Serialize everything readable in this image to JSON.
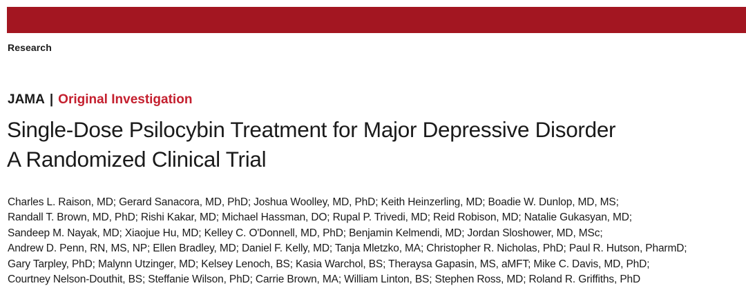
{
  "header": {
    "section": "Research"
  },
  "article": {
    "journal": "JAMA",
    "separator": "|",
    "type": "Original Investigation",
    "title": "Single-Dose Psilocybin Treatment for Major Depressive Disorder",
    "subtitle": "A Randomized Clinical Trial",
    "author_lines": [
      "Charles L. Raison, MD; Gerard Sanacora, MD, PhD; Joshua Woolley, MD, PhD; Keith Heinzerling, MD; Boadie W. Dunlop, MD, MS;",
      "Randall T. Brown, MD, PhD; Rishi Kakar, MD; Michael Hassman, DO; Rupal P. Trivedi, MD; Reid Robison, MD; Natalie Gukasyan, MD;",
      "Sandeep M. Nayak, MD; Xiaojue Hu, MD; Kelley C. O'Donnell, MD, PhD; Benjamin Kelmendi, MD; Jordan Sloshower, MD, MSc;",
      "Andrew D. Penn, RN, MS, NP; Ellen Bradley, MD; Daniel F. Kelly, MD; Tanja Mletzko, MA; Christopher R. Nicholas, PhD; Paul R. Hutson, PharmD;",
      "Gary Tarpley, PhD; Malynn Utzinger, MD; Kelsey Lenoch, BS; Kasia Warchol, BS; Theraysa Gapasin, MS, aMFT; Mike C. Davis, MD, PhD;",
      "Courtney Nelson-Douthit, BS; Steffanie Wilson, PhD; Carrie Brown, MA; William Linton, BS; Stephen Ross, MD; Roland R. Griffiths, PhD"
    ]
  },
  "colors": {
    "banner": "#a31621",
    "article_type": "#c41f2e",
    "text": "#1a1a1a"
  }
}
